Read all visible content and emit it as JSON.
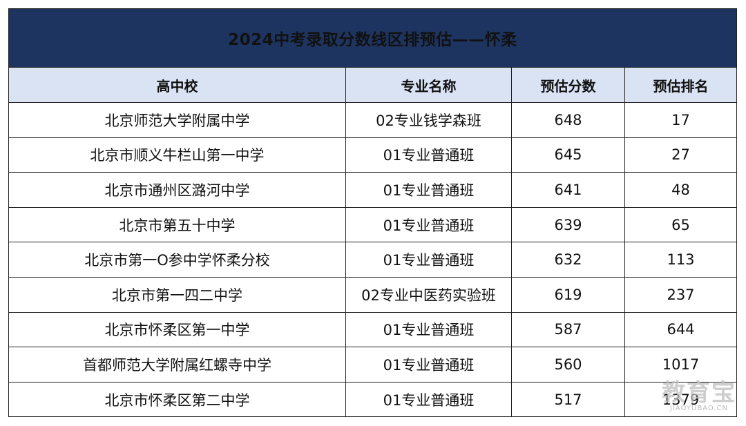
{
  "title": "2024中考录取分数线区排预估——怀柔",
  "headers": [
    "高中校",
    "专业名称",
    "预估分数",
    "预估排名"
  ],
  "rows": [
    [
      "北京师范大学附属中学",
      "02专业钱学森班",
      "648",
      "17"
    ],
    [
      "北京市顺义牛栏山第一中学",
      "01专业普通班",
      "645",
      "27"
    ],
    [
      "北京市通州区潞河中学",
      "01专业普通班",
      "641",
      "48"
    ],
    [
      "北京市第五十中学",
      "01专业普通班",
      "639",
      "65"
    ],
    [
      "北京市第一O参中学怀柔分校",
      "01专业普通班",
      "632",
      "113"
    ],
    [
      "北京市第一四二中学",
      "02专业中医药实验班",
      "619",
      "237"
    ],
    [
      "北京市怀柔区第一中学",
      "01专业普通班",
      "587",
      "644"
    ],
    [
      "首都师范大学附属红螺寺中学",
      "01专业普通班",
      "560",
      "1017"
    ],
    [
      "北京市怀柔区第二中学",
      "01专业普通班",
      "517",
      "1379"
    ]
  ],
  "watermark": {
    "main": "教育宝",
    "sub": "JIAOYUBAO.CN"
  },
  "colors": {
    "title_bg": "#1e3460",
    "header_bg": "#dae3f3",
    "border": "#1f1f1f"
  }
}
